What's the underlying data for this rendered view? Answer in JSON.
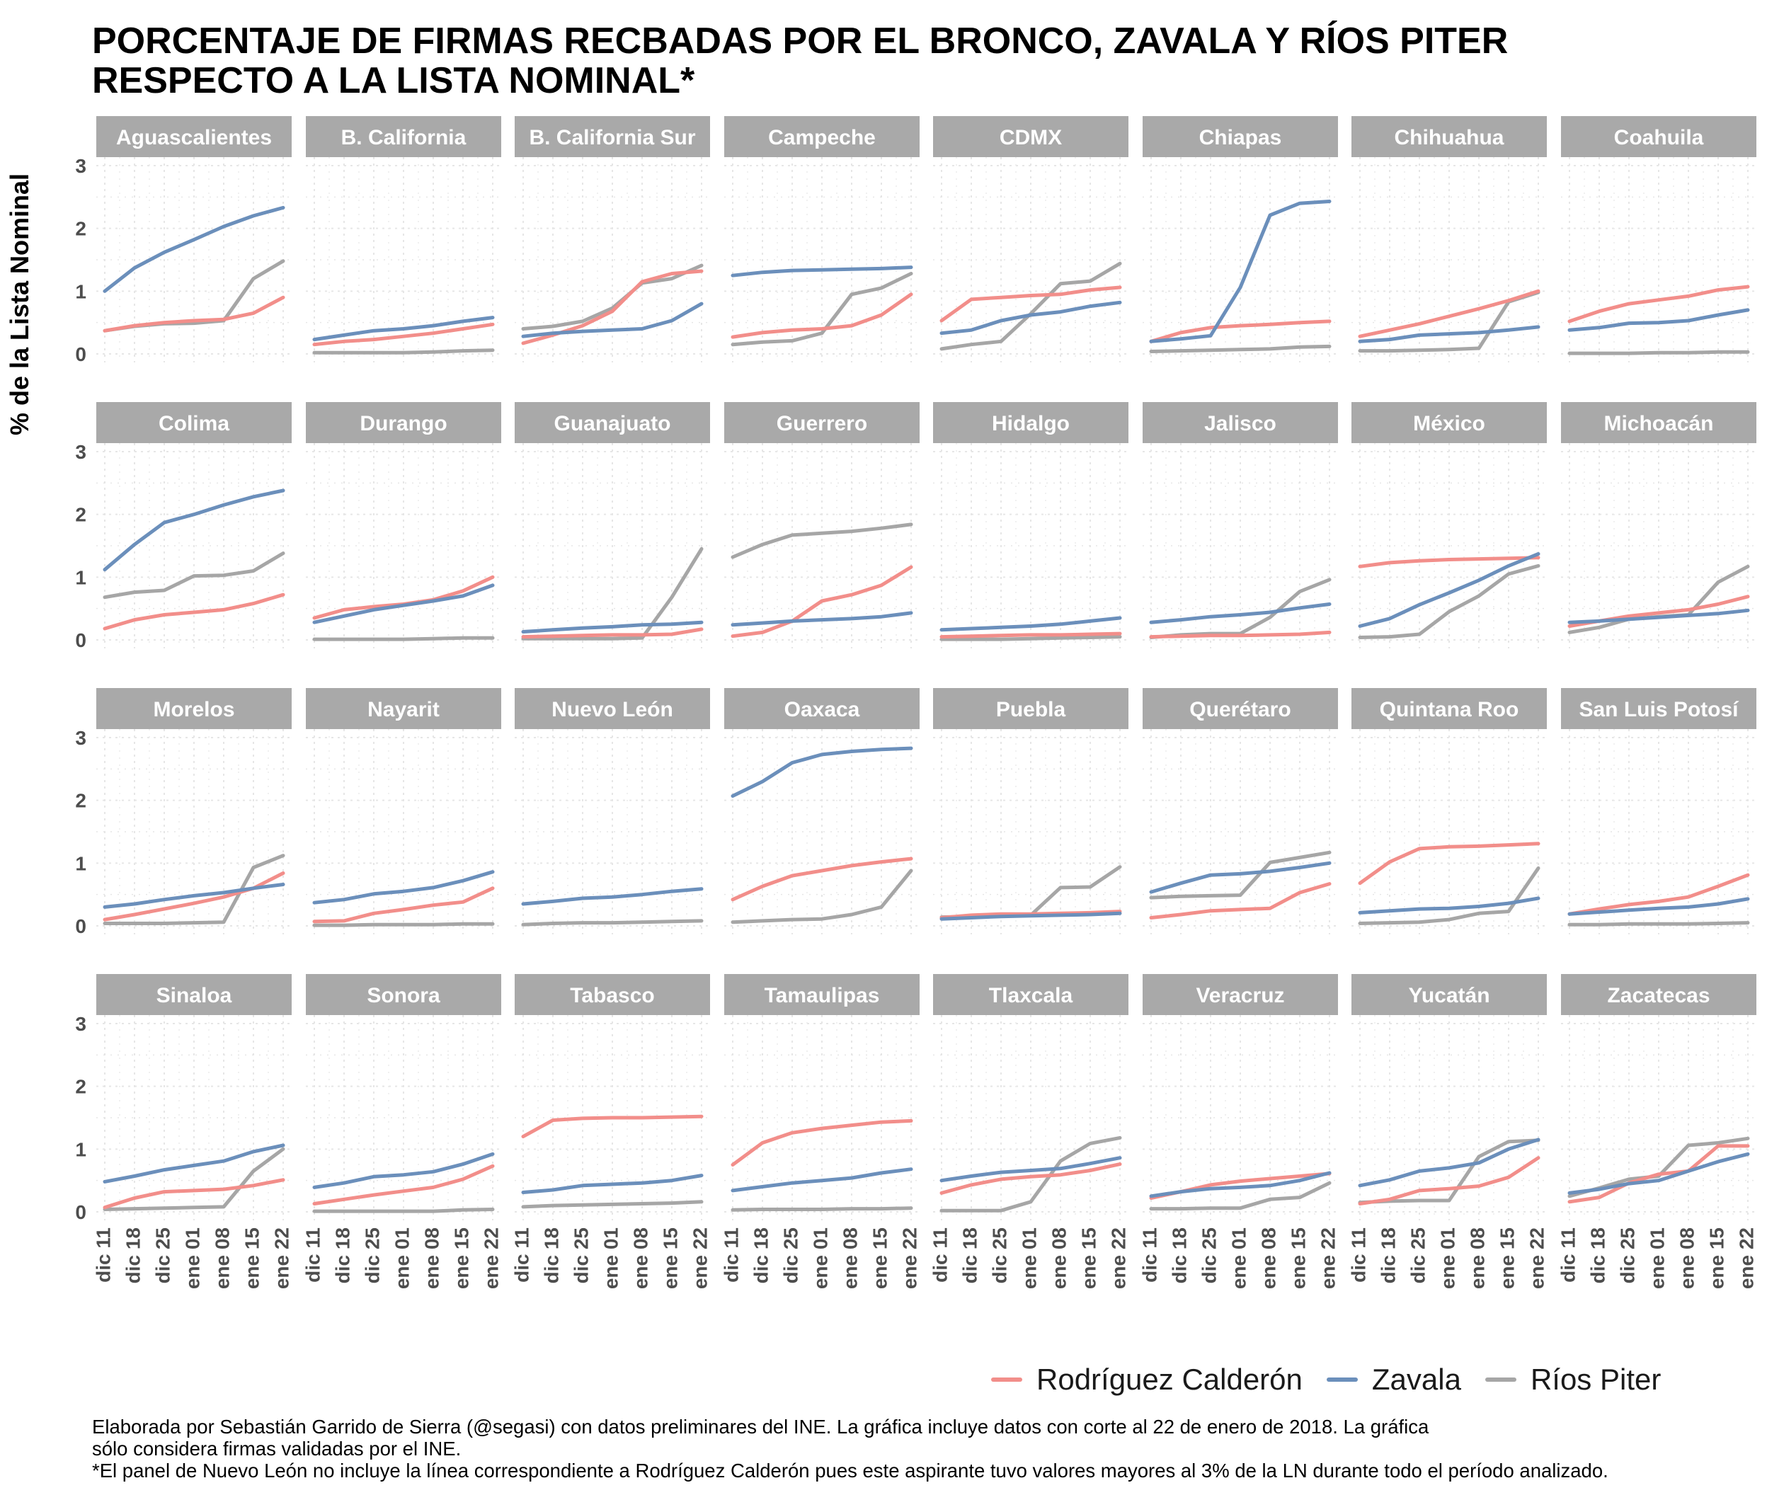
{
  "title": {
    "line1": "PORCENTAJE DE FIRMAS RECBADAS POR EL BRONCO, ZAVALA Y RÍOS PITER",
    "line2": "RESPECTO A LA LISTA NOMINAL*"
  },
  "caption": {
    "line1": "Elaborada por Sebastián Garrido de Sierra (@segasi) con datos preliminares del INE. La gráfica incluye datos con corte al 22 de enero de 2018. La gráfica",
    "line2": "sólo considera firmas validadas por el INE.",
    "line3": "*El panel de Nuevo León no incluye la línea correspondiente a Rodríguez Calderón pues este aspirante tuvo valores mayores al 3% de la LN durante todo el período analizado."
  },
  "legend": [
    {
      "name": "Rodríguez Calderón",
      "color": "#f28e8a"
    },
    {
      "name": "Zavala",
      "color": "#6b8fbb"
    },
    {
      "name": "Ríos Piter",
      "color": "#a6a6a6"
    }
  ],
  "chart_data": {
    "type": "line",
    "facet": "small-multiples",
    "ylabel": "% de la Lista Nominal",
    "ylim": [
      0,
      3
    ],
    "yticks": [
      "0",
      "1",
      "2",
      "3"
    ],
    "x": [
      "dic 11",
      "dic 18",
      "dic 25",
      "ene 01",
      "ene 08",
      "ene 15",
      "ene 22"
    ],
    "series_names": [
      "Rodríguez Calderón",
      "Zavala",
      "Ríos Piter"
    ],
    "colors": [
      "#f28e8a",
      "#6b8fbb",
      "#a6a6a6"
    ],
    "legend_position": "bottom",
    "grid": true,
    "panels": [
      {
        "name": "Aguascalientes",
        "series": [
          [
            0.37,
            0.45,
            0.5,
            0.53,
            0.55,
            0.65,
            0.9
          ],
          [
            1.0,
            1.37,
            1.62,
            1.82,
            2.03,
            2.2,
            2.33
          ],
          [
            0.37,
            0.44,
            0.48,
            0.49,
            0.53,
            1.2,
            1.48
          ]
        ]
      },
      {
        "name": "B. California",
        "series": [
          [
            0.15,
            0.2,
            0.23,
            0.28,
            0.33,
            0.4,
            0.47
          ],
          [
            0.23,
            0.3,
            0.37,
            0.4,
            0.45,
            0.52,
            0.58
          ],
          [
            0.02,
            0.02,
            0.02,
            0.02,
            0.03,
            0.05,
            0.06
          ]
        ]
      },
      {
        "name": "B. California Sur",
        "series": [
          [
            0.17,
            0.3,
            0.45,
            0.68,
            1.15,
            1.28,
            1.32
          ],
          [
            0.28,
            0.33,
            0.36,
            0.38,
            0.4,
            0.53,
            0.8
          ],
          [
            0.4,
            0.44,
            0.52,
            0.73,
            1.13,
            1.2,
            1.41
          ]
        ]
      },
      {
        "name": "Campeche",
        "series": [
          [
            0.27,
            0.34,
            0.38,
            0.4,
            0.45,
            0.62,
            0.95
          ],
          [
            1.25,
            1.3,
            1.33,
            1.34,
            1.35,
            1.36,
            1.38
          ],
          [
            0.15,
            0.19,
            0.21,
            0.33,
            0.95,
            1.05,
            1.28
          ]
        ]
      },
      {
        "name": "CDMX",
        "series": [
          [
            0.53,
            0.87,
            0.9,
            0.93,
            0.95,
            1.02,
            1.06
          ],
          [
            0.33,
            0.38,
            0.53,
            0.62,
            0.67,
            0.76,
            0.82
          ],
          [
            0.08,
            0.15,
            0.2,
            0.64,
            1.12,
            1.16,
            1.44
          ]
        ]
      },
      {
        "name": "Chiapas",
        "series": [
          [
            0.2,
            0.34,
            0.42,
            0.45,
            0.47,
            0.5,
            0.52
          ],
          [
            0.2,
            0.24,
            0.29,
            1.06,
            2.21,
            2.4,
            2.43
          ],
          [
            0.04,
            0.05,
            0.06,
            0.07,
            0.08,
            0.11,
            0.12
          ]
        ]
      },
      {
        "name": "Chihuahua",
        "series": [
          [
            0.28,
            0.38,
            0.48,
            0.6,
            0.72,
            0.85,
            1.0
          ],
          [
            0.2,
            0.23,
            0.3,
            0.32,
            0.34,
            0.38,
            0.43
          ],
          [
            0.05,
            0.05,
            0.06,
            0.07,
            0.09,
            0.83,
            0.98
          ]
        ]
      },
      {
        "name": "Coahuila",
        "series": [
          [
            0.52,
            0.68,
            0.8,
            0.86,
            0.92,
            1.02,
            1.07
          ],
          [
            0.38,
            0.42,
            0.49,
            0.5,
            0.53,
            0.62,
            0.7
          ],
          [
            0.01,
            0.01,
            0.01,
            0.02,
            0.02,
            0.03,
            0.03
          ]
        ]
      },
      {
        "name": "Colima",
        "series": [
          [
            0.18,
            0.32,
            0.4,
            0.44,
            0.48,
            0.58,
            0.72
          ],
          [
            1.12,
            1.52,
            1.87,
            2.0,
            2.15,
            2.28,
            2.38
          ],
          [
            0.68,
            0.76,
            0.79,
            1.02,
            1.03,
            1.1,
            1.38
          ]
        ]
      },
      {
        "name": "Durango",
        "series": [
          [
            0.35,
            0.48,
            0.53,
            0.57,
            0.64,
            0.78,
            1.0
          ],
          [
            0.28,
            0.38,
            0.48,
            0.55,
            0.62,
            0.7,
            0.87
          ],
          [
            0.01,
            0.01,
            0.01,
            0.01,
            0.02,
            0.03,
            0.03
          ]
        ]
      },
      {
        "name": "Guanajuato",
        "series": [
          [
            0.05,
            0.06,
            0.07,
            0.08,
            0.08,
            0.09,
            0.17
          ],
          [
            0.13,
            0.16,
            0.19,
            0.21,
            0.24,
            0.25,
            0.28
          ],
          [
            0.02,
            0.02,
            0.02,
            0.02,
            0.03,
            0.68,
            1.45
          ]
        ]
      },
      {
        "name": "Guerrero",
        "series": [
          [
            0.06,
            0.12,
            0.3,
            0.62,
            0.72,
            0.87,
            1.16
          ],
          [
            0.24,
            0.27,
            0.3,
            0.32,
            0.34,
            0.37,
            0.43
          ],
          [
            1.32,
            1.52,
            1.67,
            1.7,
            1.73,
            1.78,
            1.84
          ]
        ]
      },
      {
        "name": "Hidalgo",
        "series": [
          [
            0.05,
            0.06,
            0.07,
            0.08,
            0.08,
            0.09,
            0.1
          ],
          [
            0.16,
            0.18,
            0.2,
            0.22,
            0.25,
            0.3,
            0.35
          ],
          [
            0.01,
            0.01,
            0.01,
            0.02,
            0.03,
            0.04,
            0.05
          ]
        ]
      },
      {
        "name": "Jalisco",
        "series": [
          [
            0.05,
            0.06,
            0.07,
            0.07,
            0.08,
            0.09,
            0.12
          ],
          [
            0.28,
            0.32,
            0.37,
            0.4,
            0.44,
            0.51,
            0.57
          ],
          [
            0.04,
            0.08,
            0.1,
            0.1,
            0.36,
            0.77,
            0.96
          ]
        ]
      },
      {
        "name": "México",
        "series": [
          [
            1.17,
            1.23,
            1.26,
            1.28,
            1.29,
            1.3,
            1.31
          ],
          [
            0.22,
            0.34,
            0.56,
            0.75,
            0.95,
            1.18,
            1.37
          ],
          [
            0.04,
            0.05,
            0.09,
            0.45,
            0.7,
            1.05,
            1.18
          ]
        ]
      },
      {
        "name": "Michoacán",
        "series": [
          [
            0.22,
            0.3,
            0.38,
            0.43,
            0.48,
            0.57,
            0.69
          ],
          [
            0.28,
            0.3,
            0.33,
            0.36,
            0.39,
            0.42,
            0.47
          ],
          [
            0.12,
            0.2,
            0.33,
            0.37,
            0.4,
            0.92,
            1.17
          ]
        ]
      },
      {
        "name": "Morelos",
        "series": [
          [
            0.1,
            0.18,
            0.27,
            0.36,
            0.46,
            0.6,
            0.84
          ],
          [
            0.3,
            0.35,
            0.42,
            0.48,
            0.53,
            0.6,
            0.66
          ],
          [
            0.04,
            0.04,
            0.04,
            0.05,
            0.06,
            0.93,
            1.12
          ]
        ]
      },
      {
        "name": "Nayarit",
        "series": [
          [
            0.07,
            0.08,
            0.2,
            0.26,
            0.33,
            0.38,
            0.6
          ],
          [
            0.37,
            0.42,
            0.51,
            0.55,
            0.61,
            0.72,
            0.86
          ],
          [
            0.01,
            0.01,
            0.02,
            0.02,
            0.02,
            0.03,
            0.03
          ]
        ]
      },
      {
        "name": "Nuevo León",
        "series": [
          null,
          [
            0.35,
            0.39,
            0.44,
            0.46,
            0.5,
            0.55,
            0.59
          ],
          [
            0.02,
            0.04,
            0.05,
            0.05,
            0.06,
            0.07,
            0.08
          ]
        ]
      },
      {
        "name": "Oaxaca",
        "series": [
          [
            0.42,
            0.63,
            0.8,
            0.88,
            0.96,
            1.02,
            1.07
          ],
          [
            2.07,
            2.3,
            2.6,
            2.73,
            2.78,
            2.81,
            2.83
          ],
          [
            0.06,
            0.08,
            0.1,
            0.11,
            0.18,
            0.3,
            0.88
          ]
        ]
      },
      {
        "name": "Puebla",
        "series": [
          [
            0.13,
            0.17,
            0.19,
            0.19,
            0.2,
            0.21,
            0.23
          ],
          [
            0.11,
            0.13,
            0.15,
            0.16,
            0.17,
            0.18,
            0.2
          ],
          [
            0.14,
            0.15,
            0.17,
            0.17,
            0.61,
            0.62,
            0.94
          ]
        ]
      },
      {
        "name": "Querétaro",
        "series": [
          [
            0.13,
            0.18,
            0.24,
            0.26,
            0.28,
            0.53,
            0.67
          ],
          [
            0.54,
            0.68,
            0.81,
            0.83,
            0.87,
            0.93,
            1.0
          ],
          [
            0.45,
            0.47,
            0.48,
            0.49,
            1.01,
            1.09,
            1.17
          ]
        ]
      },
      {
        "name": "Quintana Roo",
        "series": [
          [
            0.68,
            1.02,
            1.23,
            1.26,
            1.27,
            1.29,
            1.31
          ],
          [
            0.21,
            0.24,
            0.27,
            0.28,
            0.31,
            0.36,
            0.44
          ],
          [
            0.04,
            0.05,
            0.06,
            0.1,
            0.2,
            0.23,
            0.92
          ]
        ]
      },
      {
        "name": "San Luis Potosí",
        "series": [
          [
            0.19,
            0.27,
            0.34,
            0.39,
            0.46,
            0.63,
            0.81
          ],
          [
            0.19,
            0.22,
            0.25,
            0.28,
            0.3,
            0.35,
            0.43
          ],
          [
            0.02,
            0.02,
            0.03,
            0.03,
            0.03,
            0.04,
            0.05
          ]
        ]
      },
      {
        "name": "Sinaloa",
        "series": [
          [
            0.07,
            0.22,
            0.32,
            0.34,
            0.36,
            0.42,
            0.51
          ],
          [
            0.48,
            0.57,
            0.67,
            0.74,
            0.81,
            0.96,
            1.06
          ],
          [
            0.04,
            0.05,
            0.06,
            0.07,
            0.08,
            0.65,
            1.0
          ]
        ]
      },
      {
        "name": "Sonora",
        "series": [
          [
            0.13,
            0.2,
            0.27,
            0.33,
            0.39,
            0.52,
            0.73
          ],
          [
            0.39,
            0.46,
            0.56,
            0.59,
            0.64,
            0.76,
            0.92
          ],
          [
            0.01,
            0.01,
            0.01,
            0.01,
            0.01,
            0.03,
            0.04
          ]
        ]
      },
      {
        "name": "Tabasco",
        "series": [
          [
            1.2,
            1.46,
            1.49,
            1.5,
            1.5,
            1.51,
            1.52
          ],
          [
            0.31,
            0.35,
            0.42,
            0.44,
            0.46,
            0.5,
            0.58
          ],
          [
            0.08,
            0.1,
            0.11,
            0.12,
            0.13,
            0.14,
            0.16
          ]
        ]
      },
      {
        "name": "Tamaulipas",
        "series": [
          [
            0.75,
            1.1,
            1.26,
            1.33,
            1.38,
            1.43,
            1.45
          ],
          [
            0.34,
            0.4,
            0.46,
            0.5,
            0.54,
            0.62,
            0.68
          ],
          [
            0.03,
            0.04,
            0.04,
            0.04,
            0.05,
            0.05,
            0.06
          ]
        ]
      },
      {
        "name": "Tlaxcala",
        "series": [
          [
            0.3,
            0.43,
            0.52,
            0.56,
            0.59,
            0.66,
            0.76
          ],
          [
            0.5,
            0.57,
            0.63,
            0.66,
            0.69,
            0.77,
            0.86
          ],
          [
            0.02,
            0.02,
            0.02,
            0.16,
            0.81,
            1.09,
            1.18
          ]
        ]
      },
      {
        "name": "Veracruz",
        "series": [
          [
            0.22,
            0.32,
            0.43,
            0.49,
            0.53,
            0.57,
            0.61
          ],
          [
            0.25,
            0.32,
            0.37,
            0.39,
            0.42,
            0.5,
            0.62
          ],
          [
            0.05,
            0.05,
            0.06,
            0.06,
            0.2,
            0.23,
            0.46
          ]
        ]
      },
      {
        "name": "Yucatán",
        "series": [
          [
            0.13,
            0.2,
            0.34,
            0.37,
            0.41,
            0.55,
            0.86
          ],
          [
            0.42,
            0.51,
            0.65,
            0.7,
            0.78,
            1.0,
            1.15
          ],
          [
            0.15,
            0.17,
            0.18,
            0.18,
            0.88,
            1.12,
            1.14
          ]
        ]
      },
      {
        "name": "Zacatecas",
        "series": [
          [
            0.16,
            0.23,
            0.46,
            0.6,
            0.65,
            1.05,
            1.05
          ],
          [
            0.3,
            0.36,
            0.45,
            0.5,
            0.65,
            0.8,
            0.92
          ],
          [
            0.25,
            0.38,
            0.52,
            0.57,
            1.06,
            1.1,
            1.17
          ]
        ]
      }
    ]
  }
}
